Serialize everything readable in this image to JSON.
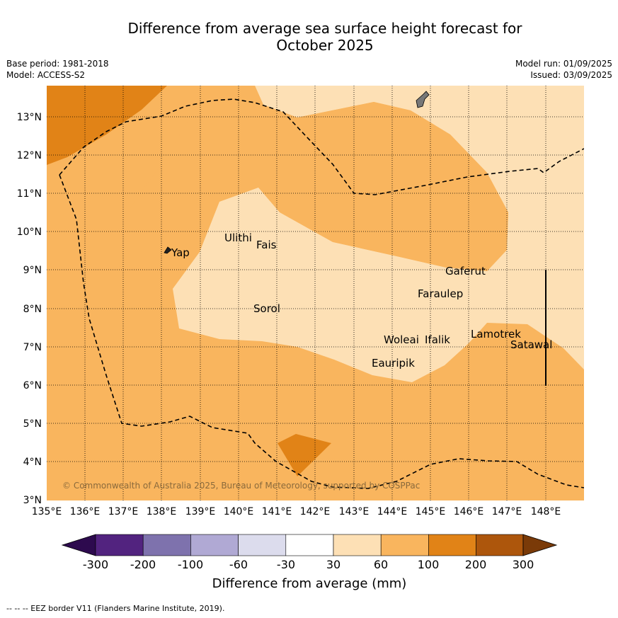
{
  "title_line1": "Difference from average sea surface height forecast for",
  "title_line2": "October 2025",
  "meta_left": {
    "base_period": "Base period: 1981-2018",
    "model": "Model: ACCESS-S2"
  },
  "meta_right": {
    "model_run": "Model run: 01/09/2025",
    "issued": "Issued: 03/09/2025"
  },
  "map": {
    "lon_ticks": [
      "135°E",
      "136°E",
      "137°E",
      "138°E",
      "139°E",
      "140°E",
      "141°E",
      "142°E",
      "143°E",
      "144°E",
      "145°E",
      "146°E",
      "147°E",
      "148°E"
    ],
    "lat_ticks": [
      "13°N",
      "12°N",
      "11°N",
      "10°N",
      "9°N",
      "8°N",
      "7°N",
      "6°N",
      "5°N",
      "4°N",
      "3°N"
    ],
    "places": [
      "Ulithi",
      "Fais",
      "Yap",
      "Gaferut",
      "Faraulep",
      "Sorol",
      "Woleai",
      "Ifalik",
      "Lamotrek",
      "Satawal",
      "Eauripik"
    ],
    "copyright": "© Commonwealth of Australia 2025, Bureau of Meteorology, supported by COSPPac",
    "colors": {
      "c30_60": "#fde0b5",
      "c60_100": "#f9b55e",
      "c100_200": "#e18317"
    }
  },
  "colorbar": {
    "ticks": [
      "-300",
      "-200",
      "-100",
      "-60",
      "-30",
      "30",
      "60",
      "100",
      "200",
      "300"
    ],
    "colors": [
      "#52237f",
      "#7e72ad",
      "#b0a9d4",
      "#dcdced",
      "#ffffff",
      "#fde0b5",
      "#f9b55e",
      "#e18317",
      "#ad560c"
    ],
    "low_extend_color": "#2d0a4e",
    "high_extend_color": "#7a3a08",
    "label": "Difference from average (mm)"
  },
  "footnote": "--  --  -- EEZ border V11 (Flanders Marine Institute, 2019)."
}
